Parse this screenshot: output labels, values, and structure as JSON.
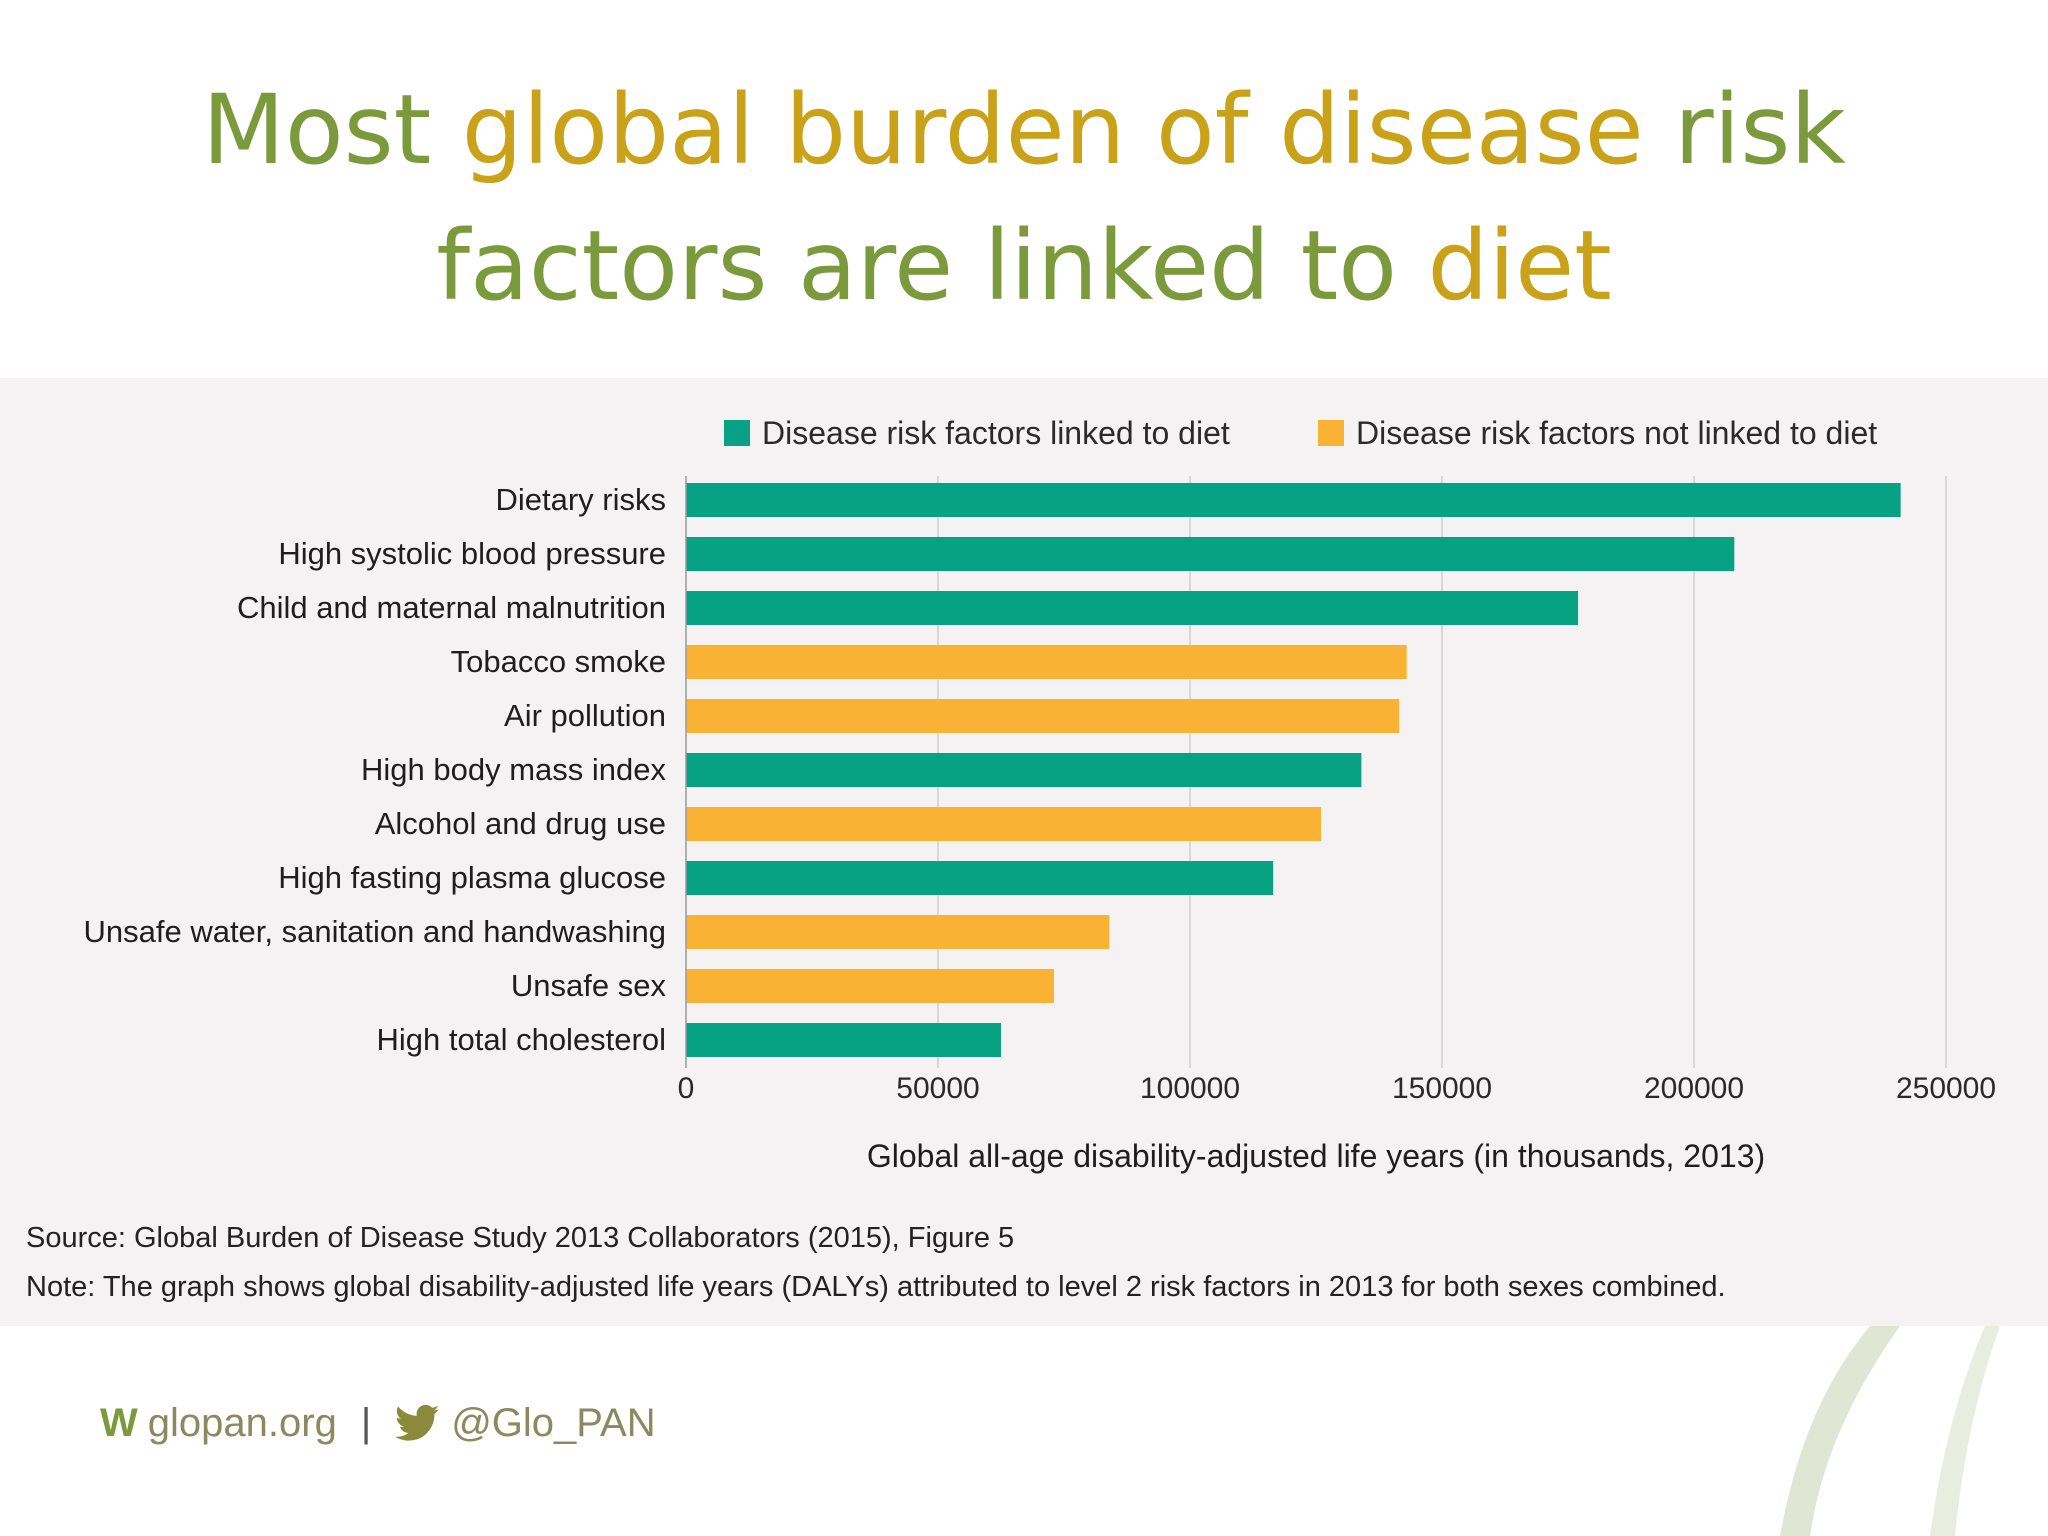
{
  "slide": {
    "title_part1": "Most ",
    "title_part2": "global burden of disease",
    "title_part3": " risk",
    "title_part4": "factors are linked to ",
    "title_part5": "diet"
  },
  "legend": {
    "diet": "Disease risk factors linked to diet",
    "not_diet": "Disease risk factors not linked to diet"
  },
  "colors": {
    "diet": "#07a184",
    "not_diet": "#f9b233",
    "title_green": "#7a9a3c",
    "title_gold": "#c9a21a"
  },
  "chart_data": {
    "type": "bar",
    "orientation": "horizontal",
    "categories": [
      "Dietary risks",
      "High systolic blood pressure",
      "Child and maternal malnutrition",
      "Tobacco smoke",
      "Air pollution",
      "High body mass index",
      "Alcohol and drug use",
      "High fasting plasma glucose",
      "Unsafe water, sanitation and handwashing",
      "Unsafe sex",
      "High total cholesterol"
    ],
    "values": [
      241000,
      208000,
      177000,
      143000,
      141500,
      134000,
      126000,
      116500,
      84000,
      73000,
      62500
    ],
    "groups": [
      "diet",
      "diet",
      "diet",
      "not_diet",
      "not_diet",
      "diet",
      "not_diet",
      "diet",
      "not_diet",
      "not_diet",
      "diet"
    ],
    "xlim": [
      0,
      250000
    ],
    "xticks": [
      "0",
      "50000",
      "100000",
      "150000",
      "200000",
      "250000"
    ],
    "xtick_values": [
      0,
      50000,
      100000,
      150000,
      200000,
      250000
    ],
    "xlabel": "Global all-age disability-adjusted life years (in thousands, 2013)",
    "grid": "vertical",
    "legend_position": "top"
  },
  "notes": {
    "source": "Source: Global Burden of Disease Study 2013 Collaborators (2015), Figure 5",
    "note": "Note: The graph shows global disability-adjusted life years (DALYs) attributed to level 2 risk factors in 2013 for both sexes combined."
  },
  "footer": {
    "w": "W",
    "site": "glopan.org",
    "separator": "|",
    "twitter_icon": "bird-icon",
    "handle": "@Glo_PAN"
  }
}
